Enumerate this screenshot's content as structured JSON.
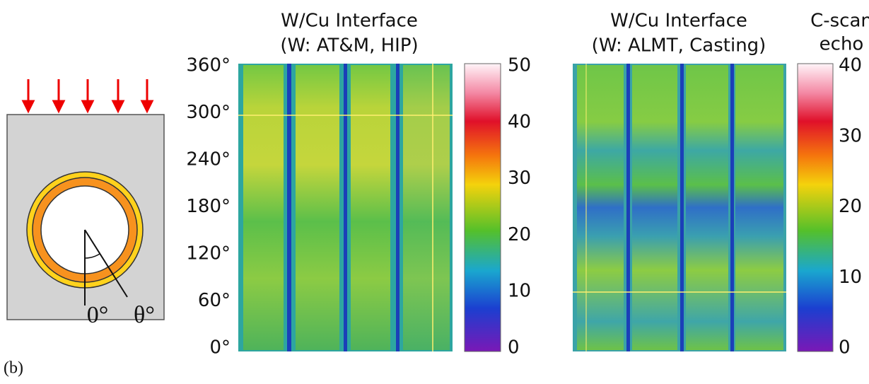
{
  "panel_label": "(b)",
  "diagram": {
    "angle_labels": [
      "0°",
      "θ°"
    ]
  },
  "panels": [
    {
      "title_lines": [
        "W/Cu Interface",
        "(W: AT&M, HIP)"
      ],
      "y_ticks": [
        "360°",
        "300°",
        "240°",
        "180°",
        "120°",
        "60°",
        "0°"
      ],
      "colorbar_ticks": [
        "50",
        "40",
        "30",
        "20",
        "10",
        "0"
      ]
    },
    {
      "title_lines": [
        "W/Cu Interface",
        "(W: ALMT, Casting)"
      ],
      "colorbar_title": [
        "C-scan",
        "echo"
      ],
      "colorbar_ticks": [
        "40",
        "30",
        "20",
        "10",
        "0"
      ]
    }
  ]
}
